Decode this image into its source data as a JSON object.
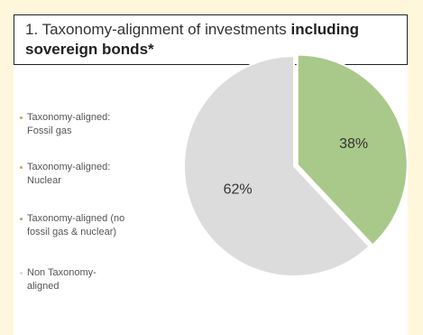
{
  "header": {
    "title_light": "1. Taxonomy-alignment of investments",
    "title_bold_1": "including",
    "title_bold_2": "sovereign bonds*"
  },
  "legend": {
    "items": [
      {
        "line1": "Taxonomy-aligned:",
        "line2": "Fossil gas",
        "color": "#c9a25a"
      },
      {
        "line1": "Taxonomy-aligned:",
        "line2": "Nuclear",
        "color": "#c9a25a"
      },
      {
        "line1": "Taxonomy-aligned (no",
        "line2": "fossil gas & nuclear)",
        "color": "#8fb86b"
      },
      {
        "line1": "Non Taxonomy-",
        "line2": "aligned",
        "color": "#d8d8d8"
      }
    ]
  },
  "chart_data": {
    "type": "pie",
    "slices": [
      {
        "name": "Taxonomy-aligned (no fossil gas & nuclear)",
        "value": 38,
        "label": "38%",
        "color": "#a9c98a"
      },
      {
        "name": "Non Taxonomy-aligned",
        "value": 62,
        "label": "62%",
        "color": "#dcdcdc"
      }
    ]
  }
}
